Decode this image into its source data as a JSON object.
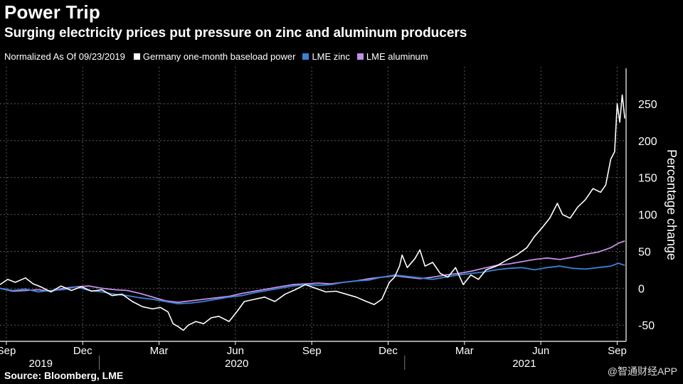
{
  "header": {
    "title": "Power Trip",
    "subtitle": "Surging electricity prices put pressure on zinc and aluminum producers"
  },
  "legend": {
    "note": "Normalized As Of 09/23/2019",
    "items": [
      {
        "label": "Germany one-month baseload power",
        "color": "#ffffff"
      },
      {
        "label": "LME zinc",
        "color": "#3b82d6"
      },
      {
        "label": "LME aluminum",
        "color": "#c38fe8"
      }
    ]
  },
  "footer": {
    "source": "Source: Bloomberg, LME",
    "watermark": "@智通财经APP"
  },
  "chart_data": {
    "type": "line",
    "title": "Power Trip",
    "subtitle": "Surging electricity prices put pressure on zinc and aluminum producers",
    "xlabel": "",
    "ylabel": "Percentage change",
    "ylim": [
      -70,
      300
    ],
    "yticks": [
      -50,
      0,
      50,
      100,
      150,
      200,
      250
    ],
    "y_tick_labels": [
      "-50",
      "0",
      "50",
      "100",
      "150",
      "200",
      "250"
    ],
    "x_axis": {
      "range_months": [
        0,
        24.6
      ],
      "month_ticks": [
        {
          "label": "Sep",
          "pos": 0.25
        },
        {
          "label": "Dec",
          "pos": 3.25
        },
        {
          "label": "Mar",
          "pos": 6.25
        },
        {
          "label": "Jun",
          "pos": 9.25
        },
        {
          "label": "Sep",
          "pos": 12.25
        },
        {
          "label": "Dec",
          "pos": 15.25
        },
        {
          "label": "Mar",
          "pos": 18.25
        },
        {
          "label": "Jun",
          "pos": 21.25
        },
        {
          "label": "Sep",
          "pos": 24.25
        }
      ],
      "years": [
        {
          "label": "2019",
          "center": 1.6
        },
        {
          "label": "2020",
          "center": 9.3
        },
        {
          "label": "2021",
          "center": 20.6
        }
      ],
      "year_dividers": [
        3.9,
        15.9
      ]
    },
    "grid": true,
    "series": [
      {
        "name": "Germany one-month baseload power",
        "color": "#ffffff",
        "points": [
          [
            0,
            5
          ],
          [
            0.3,
            12
          ],
          [
            0.6,
            8
          ],
          [
            1.0,
            14
          ],
          [
            1.3,
            6
          ],
          [
            1.6,
            2
          ],
          [
            2.0,
            -5
          ],
          [
            2.4,
            3
          ],
          [
            2.8,
            -3
          ],
          [
            3.2,
            2
          ],
          [
            3.6,
            -4
          ],
          [
            4.0,
            -2
          ],
          [
            4.4,
            -10
          ],
          [
            4.8,
            -8
          ],
          [
            5.2,
            -18
          ],
          [
            5.6,
            -25
          ],
          [
            6.0,
            -28
          ],
          [
            6.3,
            -26
          ],
          [
            6.6,
            -32
          ],
          [
            6.8,
            -48
          ],
          [
            7.0,
            -52
          ],
          [
            7.2,
            -57
          ],
          [
            7.4,
            -50
          ],
          [
            7.7,
            -45
          ],
          [
            8.0,
            -48
          ],
          [
            8.3,
            -40
          ],
          [
            8.6,
            -38
          ],
          [
            9.0,
            -45
          ],
          [
            9.3,
            -32
          ],
          [
            9.6,
            -18
          ],
          [
            10.0,
            -15
          ],
          [
            10.4,
            -12
          ],
          [
            10.8,
            -18
          ],
          [
            11.2,
            -8
          ],
          [
            11.6,
            -2
          ],
          [
            12.0,
            5
          ],
          [
            12.4,
            0
          ],
          [
            12.8,
            -5
          ],
          [
            13.2,
            -4
          ],
          [
            13.6,
            -8
          ],
          [
            14.0,
            -12
          ],
          [
            14.4,
            -18
          ],
          [
            14.7,
            -22
          ],
          [
            15.0,
            -15
          ],
          [
            15.3,
            8
          ],
          [
            15.5,
            15
          ],
          [
            15.7,
            30
          ],
          [
            15.8,
            45
          ],
          [
            16.0,
            28
          ],
          [
            16.3,
            40
          ],
          [
            16.5,
            52
          ],
          [
            16.7,
            30
          ],
          [
            17.0,
            35
          ],
          [
            17.3,
            20
          ],
          [
            17.6,
            15
          ],
          [
            17.9,
            28
          ],
          [
            18.2,
            5
          ],
          [
            18.5,
            18
          ],
          [
            18.8,
            12
          ],
          [
            19.1,
            25
          ],
          [
            19.5,
            30
          ],
          [
            19.9,
            38
          ],
          [
            20.3,
            45
          ],
          [
            20.7,
            55
          ],
          [
            21.0,
            70
          ],
          [
            21.3,
            82
          ],
          [
            21.6,
            95
          ],
          [
            21.9,
            115
          ],
          [
            22.1,
            100
          ],
          [
            22.4,
            95
          ],
          [
            22.7,
            110
          ],
          [
            23.0,
            120
          ],
          [
            23.3,
            135
          ],
          [
            23.6,
            130
          ],
          [
            23.8,
            140
          ],
          [
            24.0,
            175
          ],
          [
            24.15,
            185
          ],
          [
            24.25,
            250
          ],
          [
            24.35,
            225
          ],
          [
            24.45,
            262
          ],
          [
            24.55,
            230
          ]
        ]
      },
      {
        "name": "LME zinc",
        "color": "#3b82d6",
        "points": [
          [
            0,
            0
          ],
          [
            0.5,
            -3
          ],
          [
            1.0,
            -1
          ],
          [
            1.5,
            -5
          ],
          [
            2.0,
            -3
          ],
          [
            2.5,
            -2
          ],
          [
            3.0,
            2
          ],
          [
            3.5,
            -3
          ],
          [
            4.0,
            -5
          ],
          [
            4.5,
            -8
          ],
          [
            5.0,
            -10
          ],
          [
            5.5,
            -13
          ],
          [
            6.0,
            -15
          ],
          [
            6.5,
            -18
          ],
          [
            7.0,
            -21
          ],
          [
            7.5,
            -20
          ],
          [
            8.0,
            -18
          ],
          [
            8.5,
            -15
          ],
          [
            9.0,
            -12
          ],
          [
            9.5,
            -10
          ],
          [
            10.0,
            -6
          ],
          [
            10.5,
            -3
          ],
          [
            11.0,
            0
          ],
          [
            11.5,
            3
          ],
          [
            12.0,
            5
          ],
          [
            12.5,
            4
          ],
          [
            13.0,
            5
          ],
          [
            13.5,
            8
          ],
          [
            14.0,
            10
          ],
          [
            14.5,
            11
          ],
          [
            15.0,
            15
          ],
          [
            15.5,
            18
          ],
          [
            16.0,
            16
          ],
          [
            16.5,
            14
          ],
          [
            17.0,
            12
          ],
          [
            17.5,
            15
          ],
          [
            18.0,
            18
          ],
          [
            18.5,
            20
          ],
          [
            19.0,
            22
          ],
          [
            19.5,
            25
          ],
          [
            20.0,
            27
          ],
          [
            20.5,
            28
          ],
          [
            21.0,
            25
          ],
          [
            21.5,
            28
          ],
          [
            22.0,
            30
          ],
          [
            22.5,
            27
          ],
          [
            23.0,
            26
          ],
          [
            23.5,
            28
          ],
          [
            24.0,
            30
          ],
          [
            24.3,
            34
          ],
          [
            24.55,
            31
          ]
        ]
      },
      {
        "name": "LME aluminum",
        "color": "#c38fe8",
        "points": [
          [
            0,
            0
          ],
          [
            0.5,
            -4
          ],
          [
            1.0,
            -3
          ],
          [
            1.5,
            -2
          ],
          [
            2.0,
            -4
          ],
          [
            2.5,
            0
          ],
          [
            3.0,
            2
          ],
          [
            3.5,
            3
          ],
          [
            4.0,
            0
          ],
          [
            4.5,
            -2
          ],
          [
            5.0,
            -3
          ],
          [
            5.5,
            -7
          ],
          [
            6.0,
            -12
          ],
          [
            6.5,
            -17
          ],
          [
            7.0,
            -19
          ],
          [
            7.5,
            -17
          ],
          [
            8.0,
            -15
          ],
          [
            8.5,
            -13
          ],
          [
            9.0,
            -11
          ],
          [
            9.5,
            -7
          ],
          [
            10.0,
            -4
          ],
          [
            10.5,
            -1
          ],
          [
            11.0,
            2
          ],
          [
            11.5,
            5
          ],
          [
            12.0,
            6
          ],
          [
            12.5,
            7
          ],
          [
            13.0,
            6
          ],
          [
            13.5,
            8
          ],
          [
            14.0,
            10
          ],
          [
            14.5,
            13
          ],
          [
            15.0,
            15
          ],
          [
            15.5,
            17
          ],
          [
            16.0,
            15
          ],
          [
            16.5,
            13
          ],
          [
            17.0,
            15
          ],
          [
            17.5,
            18
          ],
          [
            18.0,
            20
          ],
          [
            18.5,
            23
          ],
          [
            19.0,
            27
          ],
          [
            19.5,
            31
          ],
          [
            20.0,
            33
          ],
          [
            20.5,
            36
          ],
          [
            21.0,
            39
          ],
          [
            21.5,
            41
          ],
          [
            22.0,
            39
          ],
          [
            22.5,
            42
          ],
          [
            23.0,
            46
          ],
          [
            23.5,
            49
          ],
          [
            24.0,
            55
          ],
          [
            24.3,
            61
          ],
          [
            24.55,
            64
          ]
        ]
      }
    ]
  }
}
